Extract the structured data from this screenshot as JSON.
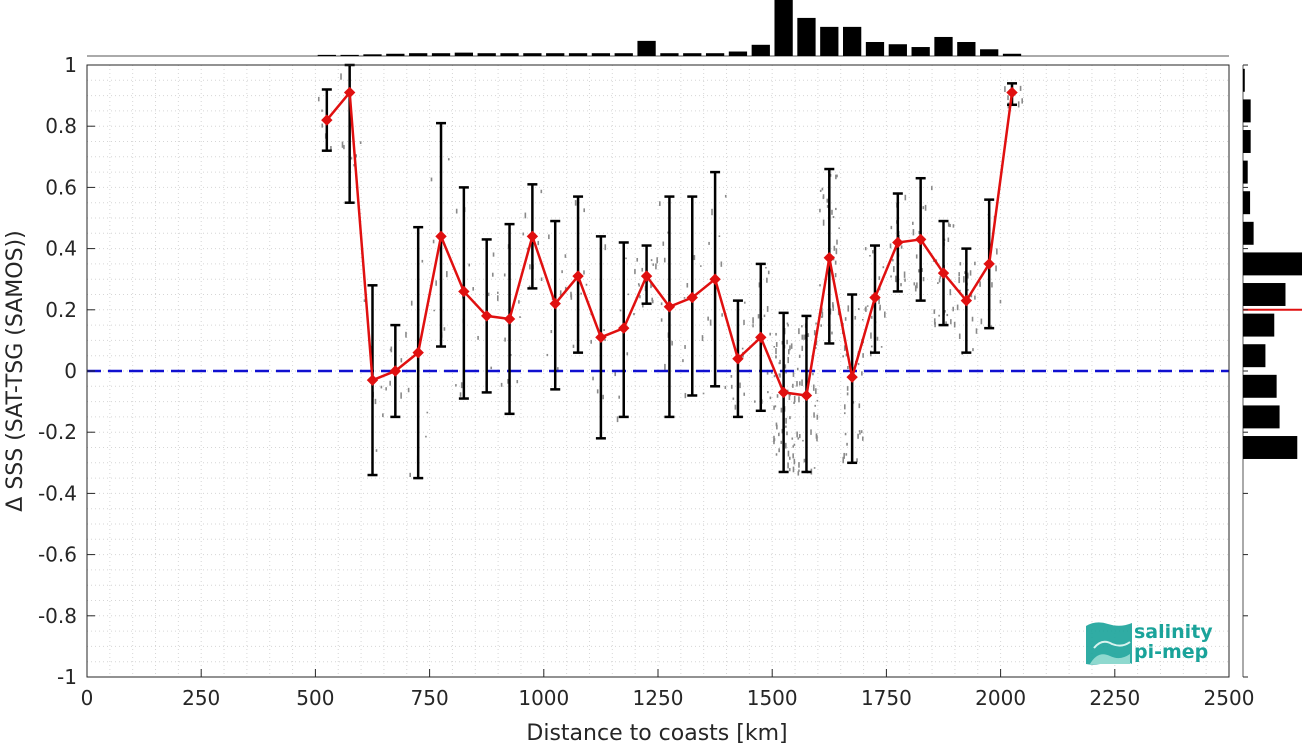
{
  "chart_data": {
    "type": "line",
    "title": "",
    "xlabel": "Distance to coasts [km]",
    "ylabel": "Δ SSS (SAT-TSG (SAMOS))",
    "xlim": [
      0,
      2500
    ],
    "ylim": [
      -1,
      1
    ],
    "xticks": [
      0,
      250,
      500,
      750,
      1000,
      1250,
      1500,
      1750,
      2000,
      2250,
      2500
    ],
    "yticks": [
      -1,
      -0.8,
      -0.6,
      -0.4,
      -0.2,
      0,
      0.2,
      0.4,
      0.6,
      0.8,
      1
    ],
    "grid": true,
    "reference_line": {
      "y": 0,
      "color": "#1010d0",
      "style": "dashed"
    },
    "series": [
      {
        "type": "line-with-errorbars",
        "color": "#e01010",
        "x": [
          525,
          575,
          625,
          675,
          725,
          775,
          825,
          875,
          925,
          975,
          1025,
          1075,
          1125,
          1175,
          1225,
          1275,
          1325,
          1375,
          1425,
          1475,
          1525,
          1575,
          1625,
          1675,
          1725,
          1775,
          1825,
          1875,
          1925,
          1975,
          2025
        ],
        "y": [
          0.82,
          0.91,
          -0.03,
          0.0,
          0.06,
          0.44,
          0.26,
          0.18,
          0.17,
          0.44,
          0.22,
          0.31,
          0.11,
          0.14,
          0.31,
          0.21,
          0.24,
          0.3,
          0.04,
          0.11,
          -0.07,
          -0.08,
          0.37,
          -0.02,
          0.24,
          0.42,
          0.43,
          0.32,
          0.23,
          0.35,
          0.91
        ],
        "err_low": [
          0.72,
          0.55,
          -0.34,
          -0.15,
          -0.35,
          0.08,
          -0.09,
          -0.07,
          -0.14,
          0.27,
          -0.06,
          0.06,
          -0.22,
          -0.15,
          0.22,
          -0.15,
          -0.08,
          -0.05,
          -0.15,
          -0.13,
          -0.33,
          -0.33,
          0.09,
          -0.3,
          0.06,
          0.26,
          0.23,
          0.15,
          0.06,
          0.14,
          0.87
        ],
        "err_high": [
          0.92,
          1.0,
          0.28,
          0.15,
          0.47,
          0.81,
          0.6,
          0.43,
          0.48,
          0.61,
          0.49,
          0.57,
          0.44,
          0.42,
          0.41,
          0.57,
          0.57,
          0.65,
          0.23,
          0.35,
          0.19,
          0.18,
          0.66,
          0.25,
          0.41,
          0.58,
          0.63,
          0.49,
          0.4,
          0.56,
          0.94
        ]
      }
    ],
    "top_histogram": {
      "x": [
        525,
        575,
        625,
        675,
        725,
        775,
        825,
        875,
        925,
        975,
        1025,
        1075,
        1125,
        1175,
        1225,
        1275,
        1325,
        1375,
        1425,
        1475,
        1525,
        1575,
        1625,
        1675,
        1725,
        1775,
        1825,
        1875,
        1925,
        1975,
        2025
      ],
      "values": [
        0.02,
        0.02,
        0.03,
        0.04,
        0.05,
        0.05,
        0.06,
        0.05,
        0.05,
        0.05,
        0.05,
        0.05,
        0.05,
        0.05,
        0.27,
        0.05,
        0.05,
        0.05,
        0.08,
        0.2,
        1.0,
        0.68,
        0.52,
        0.52,
        0.25,
        0.21,
        0.16,
        0.34,
        0.25,
        0.12,
        0.04
      ]
    },
    "right_histogram": {
      "y": [
        0.95,
        0.85,
        0.75,
        0.65,
        0.55,
        0.45,
        0.35,
        0.25,
        0.15,
        0.05,
        -0.05,
        -0.15,
        -0.25
      ],
      "values": [
        0.03,
        0.13,
        0.13,
        0.08,
        0.12,
        0.18,
        1.0,
        0.72,
        0.53,
        0.38,
        0.57,
        0.62,
        0.92
      ],
      "marker_y": 0.2,
      "marker_color": "#e01010"
    }
  },
  "logo": {
    "line1": "salinity",
    "line2": "pi-mep"
  }
}
